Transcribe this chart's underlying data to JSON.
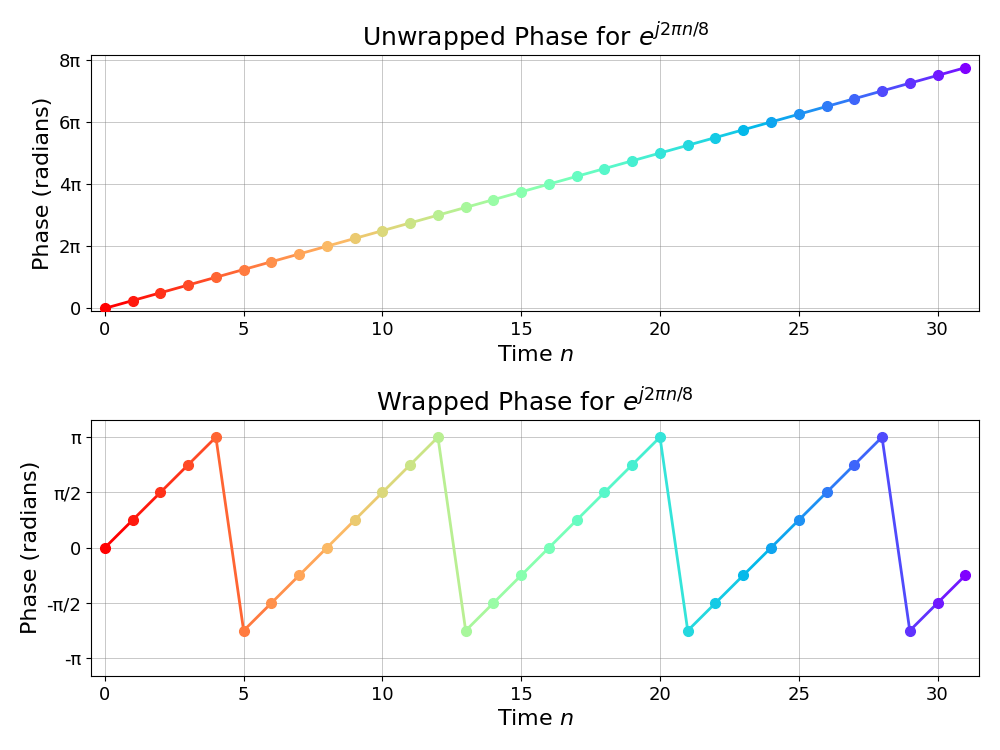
{
  "n_points": 32,
  "period": 8,
  "title_unwrapped": "Unwrapped Phase for $e^{j2\\pi n/8}$",
  "title_wrapped": "Wrapped Phase for $e^{j2\\pi n/8}$",
  "xlabel": "Time $n$",
  "ylabel": "Phase (radians)",
  "unwrapped_yticks": [
    0,
    6.283185307,
    12.566370614,
    18.849555921,
    25.132741228
  ],
  "unwrapped_yticklabels": [
    "0",
    "2π",
    "4π",
    "6π",
    "8π"
  ],
  "wrapped_yticks": [
    -3.141592653,
    -1.5707963,
    0,
    1.5707963,
    3.141592653
  ],
  "wrapped_yticklabels": [
    "-π",
    "-π/2",
    "0",
    "π/2",
    "π"
  ],
  "xticks": [
    0,
    5,
    10,
    15,
    20,
    25,
    30
  ],
  "colormap": "rainbow_r",
  "marker": "o",
  "markersize": 7,
  "linewidth": 2.0,
  "title_fontsize": 18,
  "label_fontsize": 16,
  "tick_fontsize": 13,
  "figsize": [
    10.0,
    7.5
  ],
  "dpi": 100
}
